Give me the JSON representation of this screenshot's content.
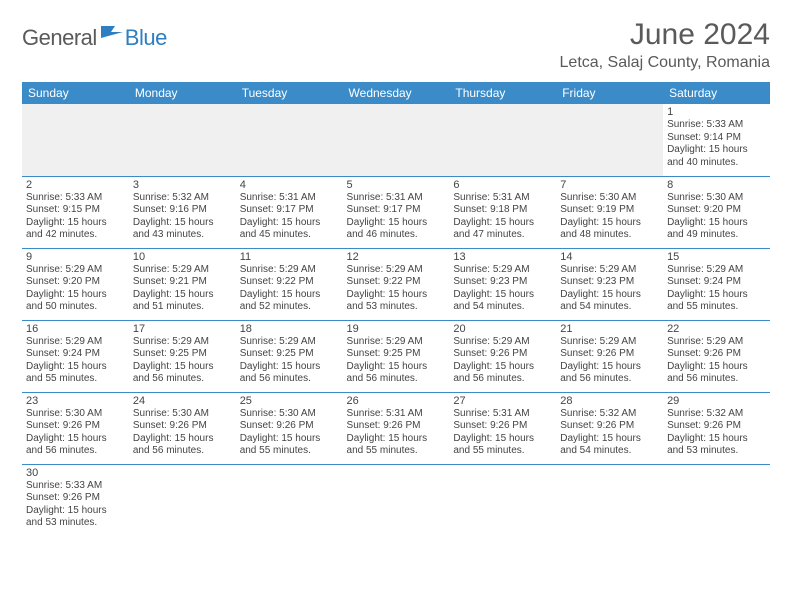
{
  "logo": {
    "part1": "General",
    "part2": "Blue"
  },
  "title": "June 2024",
  "location": "Letca, Salaj County, Romania",
  "colors": {
    "header_bg": "#3b8bc9",
    "header_fg": "#ffffff",
    "rule": "#3b8bc9",
    "logo_gray": "#5a5a5a",
    "logo_blue": "#2d7fc1",
    "empty_row_bg": "#f0f0f0"
  },
  "weekdays": [
    "Sunday",
    "Monday",
    "Tuesday",
    "Wednesday",
    "Thursday",
    "Friday",
    "Saturday"
  ],
  "weeks": [
    [
      null,
      null,
      null,
      null,
      null,
      null,
      {
        "d": "1",
        "sr": "5:33 AM",
        "ss": "9:14 PM",
        "dl": "15 hours and 40 minutes."
      }
    ],
    [
      {
        "d": "2",
        "sr": "5:33 AM",
        "ss": "9:15 PM",
        "dl": "15 hours and 42 minutes."
      },
      {
        "d": "3",
        "sr": "5:32 AM",
        "ss": "9:16 PM",
        "dl": "15 hours and 43 minutes."
      },
      {
        "d": "4",
        "sr": "5:31 AM",
        "ss": "9:17 PM",
        "dl": "15 hours and 45 minutes."
      },
      {
        "d": "5",
        "sr": "5:31 AM",
        "ss": "9:17 PM",
        "dl": "15 hours and 46 minutes."
      },
      {
        "d": "6",
        "sr": "5:31 AM",
        "ss": "9:18 PM",
        "dl": "15 hours and 47 minutes."
      },
      {
        "d": "7",
        "sr": "5:30 AM",
        "ss": "9:19 PM",
        "dl": "15 hours and 48 minutes."
      },
      {
        "d": "8",
        "sr": "5:30 AM",
        "ss": "9:20 PM",
        "dl": "15 hours and 49 minutes."
      }
    ],
    [
      {
        "d": "9",
        "sr": "5:29 AM",
        "ss": "9:20 PM",
        "dl": "15 hours and 50 minutes."
      },
      {
        "d": "10",
        "sr": "5:29 AM",
        "ss": "9:21 PM",
        "dl": "15 hours and 51 minutes."
      },
      {
        "d": "11",
        "sr": "5:29 AM",
        "ss": "9:22 PM",
        "dl": "15 hours and 52 minutes."
      },
      {
        "d": "12",
        "sr": "5:29 AM",
        "ss": "9:22 PM",
        "dl": "15 hours and 53 minutes."
      },
      {
        "d": "13",
        "sr": "5:29 AM",
        "ss": "9:23 PM",
        "dl": "15 hours and 54 minutes."
      },
      {
        "d": "14",
        "sr": "5:29 AM",
        "ss": "9:23 PM",
        "dl": "15 hours and 54 minutes."
      },
      {
        "d": "15",
        "sr": "5:29 AM",
        "ss": "9:24 PM",
        "dl": "15 hours and 55 minutes."
      }
    ],
    [
      {
        "d": "16",
        "sr": "5:29 AM",
        "ss": "9:24 PM",
        "dl": "15 hours and 55 minutes."
      },
      {
        "d": "17",
        "sr": "5:29 AM",
        "ss": "9:25 PM",
        "dl": "15 hours and 56 minutes."
      },
      {
        "d": "18",
        "sr": "5:29 AM",
        "ss": "9:25 PM",
        "dl": "15 hours and 56 minutes."
      },
      {
        "d": "19",
        "sr": "5:29 AM",
        "ss": "9:25 PM",
        "dl": "15 hours and 56 minutes."
      },
      {
        "d": "20",
        "sr": "5:29 AM",
        "ss": "9:26 PM",
        "dl": "15 hours and 56 minutes."
      },
      {
        "d": "21",
        "sr": "5:29 AM",
        "ss": "9:26 PM",
        "dl": "15 hours and 56 minutes."
      },
      {
        "d": "22",
        "sr": "5:29 AM",
        "ss": "9:26 PM",
        "dl": "15 hours and 56 minutes."
      }
    ],
    [
      {
        "d": "23",
        "sr": "5:30 AM",
        "ss": "9:26 PM",
        "dl": "15 hours and 56 minutes."
      },
      {
        "d": "24",
        "sr": "5:30 AM",
        "ss": "9:26 PM",
        "dl": "15 hours and 56 minutes."
      },
      {
        "d": "25",
        "sr": "5:30 AM",
        "ss": "9:26 PM",
        "dl": "15 hours and 55 minutes."
      },
      {
        "d": "26",
        "sr": "5:31 AM",
        "ss": "9:26 PM",
        "dl": "15 hours and 55 minutes."
      },
      {
        "d": "27",
        "sr": "5:31 AM",
        "ss": "9:26 PM",
        "dl": "15 hours and 55 minutes."
      },
      {
        "d": "28",
        "sr": "5:32 AM",
        "ss": "9:26 PM",
        "dl": "15 hours and 54 minutes."
      },
      {
        "d": "29",
        "sr": "5:32 AM",
        "ss": "9:26 PM",
        "dl": "15 hours and 53 minutes."
      }
    ],
    [
      {
        "d": "30",
        "sr": "5:33 AM",
        "ss": "9:26 PM",
        "dl": "15 hours and 53 minutes."
      },
      null,
      null,
      null,
      null,
      null,
      null
    ]
  ],
  "labels": {
    "sunrise": "Sunrise:",
    "sunset": "Sunset:",
    "daylight": "Daylight:"
  }
}
